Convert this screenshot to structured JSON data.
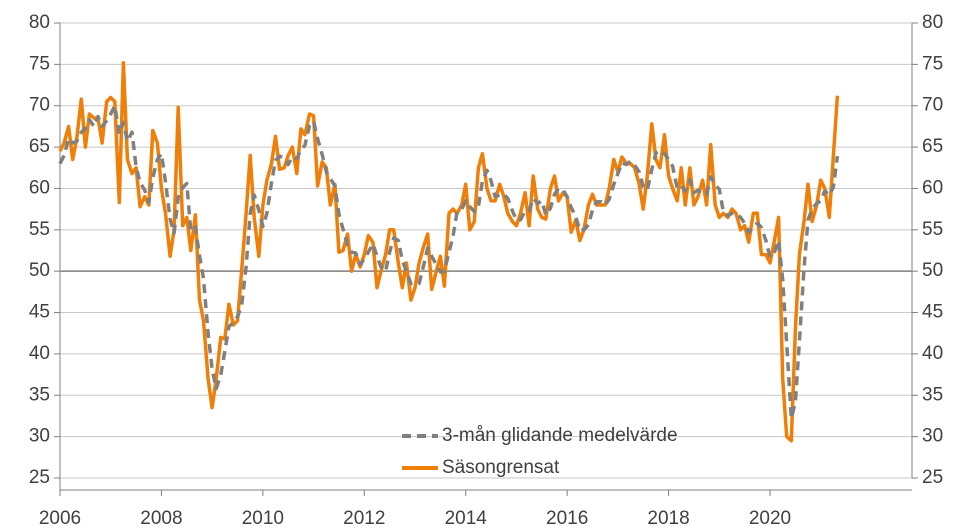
{
  "chart_data": {
    "type": "line",
    "x": [
      2006,
      2006.08,
      2006.17,
      2006.25,
      2006.33,
      2006.42,
      2006.5,
      2006.58,
      2006.67,
      2006.75,
      2006.83,
      2006.92,
      2007,
      2007.08,
      2007.17,
      2007.25,
      2007.33,
      2007.42,
      2007.5,
      2007.58,
      2007.67,
      2007.75,
      2007.83,
      2007.92,
      2008,
      2008.08,
      2008.17,
      2008.25,
      2008.33,
      2008.42,
      2008.5,
      2008.58,
      2008.67,
      2008.75,
      2008.83,
      2008.92,
      2009,
      2009.08,
      2009.17,
      2009.25,
      2009.33,
      2009.42,
      2009.5,
      2009.58,
      2009.67,
      2009.75,
      2009.83,
      2009.92,
      2010,
      2010.08,
      2010.17,
      2010.25,
      2010.33,
      2010.42,
      2010.5,
      2010.58,
      2010.67,
      2010.75,
      2010.83,
      2010.92,
      2011,
      2011.08,
      2011.17,
      2011.25,
      2011.33,
      2011.42,
      2011.5,
      2011.58,
      2011.67,
      2011.75,
      2011.83,
      2011.92,
      2012,
      2012.08,
      2012.17,
      2012.25,
      2012.33,
      2012.42,
      2012.5,
      2012.58,
      2012.67,
      2012.75,
      2012.83,
      2012.92,
      2013,
      2013.08,
      2013.17,
      2013.25,
      2013.33,
      2013.42,
      2013.5,
      2013.58,
      2013.67,
      2013.75,
      2013.83,
      2013.92,
      2014,
      2014.08,
      2014.17,
      2014.25,
      2014.33,
      2014.42,
      2014.5,
      2014.58,
      2014.67,
      2014.75,
      2014.83,
      2014.92,
      2015,
      2015.08,
      2015.17,
      2015.25,
      2015.33,
      2015.42,
      2015.5,
      2015.58,
      2015.67,
      2015.75,
      2015.83,
      2015.92,
      2016,
      2016.08,
      2016.17,
      2016.25,
      2016.33,
      2016.42,
      2016.5,
      2016.58,
      2016.67,
      2016.75,
      2016.83,
      2016.92,
      2017,
      2017.08,
      2017.17,
      2017.25,
      2017.33,
      2017.42,
      2017.5,
      2017.58,
      2017.67,
      2017.75,
      2017.83,
      2017.92,
      2018,
      2018.08,
      2018.17,
      2018.25,
      2018.33,
      2018.42,
      2018.5,
      2018.58,
      2018.67,
      2018.75,
      2018.83,
      2018.92,
      2019,
      2019.08,
      2019.17,
      2019.25,
      2019.33,
      2019.42,
      2019.5,
      2019.58,
      2019.67,
      2019.75,
      2019.83,
      2019.92,
      2020,
      2020.08,
      2020.17,
      2020.25,
      2020.33,
      2020.42,
      2020.5,
      2020.58,
      2020.67,
      2020.75,
      2020.83,
      2020.92,
      2021,
      2021.08,
      2021.17,
      2021.25,
      2021.33
    ],
    "series": [
      {
        "name": "3-mån glidande medelvärde",
        "color": "#808080",
        "dashed": true,
        "values": [
          63,
          64,
          66,
          65.5,
          65.7,
          66.8,
          67.3,
          68.3,
          67.5,
          68.7,
          67.5,
          68.2,
          69,
          70,
          66.6,
          68,
          65.7,
          66.8,
          62.6,
          60.7,
          59.8,
          58.3,
          61.3,
          63.5,
          64.2,
          60.8,
          56.3,
          54.6,
          58.9,
          60.1,
          60.6,
          54.8,
          55.3,
          51.9,
          49.1,
          42.5,
          38.2,
          35.8,
          37.5,
          40.3,
          43.3,
          43.8,
          44.5,
          45.8,
          50.5,
          57,
          59.2,
          57.4,
          55.4,
          57,
          60.7,
          63.4,
          63.9,
          63.7,
          62.9,
          63.8,
          63.6,
          64.7,
          65.2,
          67.6,
          68.1,
          66,
          64.1,
          62,
          61.2,
          60.3,
          56.9,
          55.1,
          53.1,
          52.3,
          52.2,
          50.8,
          51.5,
          52.3,
          53.3,
          51.8,
          50.5,
          50,
          52.3,
          54,
          53.7,
          51.3,
          50,
          48.5,
          48.5,
          48.5,
          50.7,
          52.8,
          51.8,
          50.8,
          49.9,
          50,
          52.3,
          54.2,
          57.2,
          57.5,
          58.5,
          57.8,
          57.2,
          57.8,
          60.9,
          62.2,
          60.9,
          59,
          59.2,
          59.3,
          58.8,
          57.3,
          56.2,
          56.2,
          57.3,
          57.3,
          58.8,
          58.2,
          58.5,
          56.8,
          57.6,
          59.3,
          60,
          59.8,
          59,
          57.7,
          56.6,
          54.9,
          55,
          55.6,
          57.4,
          58.4,
          58.4,
          58,
          58.7,
          60.5,
          61.8,
          63.1,
          62.9,
          63.3,
          62.8,
          62,
          60.2,
          59.8,
          62.3,
          64.3,
          64.6,
          64.2,
          63.5,
          62.7,
          60,
          60.3,
          59.7,
          61,
          59.5,
          59.8,
          59.3,
          59.3,
          61.4,
          60.4,
          59.9,
          57.2,
          56.7,
          57,
          57,
          56.5,
          55.8,
          54.7,
          55.3,
          55.8,
          55.3,
          53.7,
          51.7,
          52.2,
          53.7,
          49,
          41.2,
          32.2,
          34.2,
          41.5,
          50.3,
          56.2,
          57.5,
          58.2,
          58.5,
          59.7,
          59.2,
          60.2,
          63.9
        ]
      },
      {
        "name": "Säsongrensat",
        "color": "#f07f09",
        "dashed": false,
        "values": [
          64.5,
          65.5,
          67.5,
          63.5,
          66,
          70.8,
          65,
          69,
          68.5,
          68.5,
          65.5,
          70.5,
          71,
          70.5,
          58.3,
          75.2,
          63.5,
          61.8,
          62.5,
          57.8,
          59,
          58,
          67,
          65.5,
          60,
          57,
          51.8,
          55,
          69.8,
          55.5,
          56.5,
          52.5,
          56.8,
          46.5,
          44,
          37,
          33.5,
          37,
          42,
          41.8,
          46,
          43.5,
          44,
          50,
          57,
          64,
          56.5,
          51.8,
          58,
          61,
          63,
          66.3,
          62.3,
          62.5,
          64,
          65,
          61.8,
          67.2,
          66.5,
          69,
          68.8,
          60.3,
          63.2,
          62.5,
          58,
          60.5,
          52.3,
          52.5,
          54.5,
          50,
          52,
          50.5,
          52,
          54.3,
          53.5,
          48,
          50,
          52,
          55,
          55,
          51,
          48,
          51,
          46.5,
          48,
          51,
          53,
          54.5,
          47.8,
          50,
          51.8,
          48.2,
          57,
          57.5,
          57,
          58,
          60.5,
          55,
          56,
          62.5,
          64.2,
          60,
          58.5,
          58.5,
          60.5,
          59,
          57,
          56,
          55.5,
          57,
          59.5,
          55.5,
          61.5,
          57.5,
          56.5,
          56.3,
          60,
          61.5,
          58.5,
          59.5,
          59,
          54.7,
          56.2,
          53.7,
          55,
          58,
          59.3,
          58,
          58,
          58,
          60,
          63.5,
          62,
          63.8,
          63,
          63,
          62.5,
          60.5,
          57.5,
          61.5,
          67.8,
          63.5,
          62.5,
          66.5,
          61.5,
          60,
          58.5,
          62.5,
          58,
          62.5,
          58,
          59,
          61,
          58,
          65.3,
          58,
          56.5,
          57,
          56.5,
          57.5,
          57,
          55,
          55.5,
          53.5,
          57,
          57,
          52,
          52,
          51,
          53.5,
          56.5,
          37,
          30,
          29.5,
          43,
          52,
          56,
          60.5,
          56,
          58,
          61,
          60,
          56.5,
          64,
          71.2
        ]
      }
    ],
    "xlim": [
      2006,
      2022.8
    ],
    "xticks": [
      2006,
      2008,
      2010,
      2012,
      2014,
      2016,
      2018,
      2020
    ],
    "ylim": [
      25,
      80
    ],
    "yticks": [
      25,
      30,
      35,
      40,
      45,
      50,
      55,
      60,
      65,
      70,
      75,
      80
    ],
    "y2lim": [
      25,
      80
    ],
    "y2ticks": [
      25,
      30,
      35,
      40,
      45,
      50,
      55,
      60,
      65,
      70,
      75,
      80
    ],
    "reference_line": 50,
    "grid": true
  }
}
